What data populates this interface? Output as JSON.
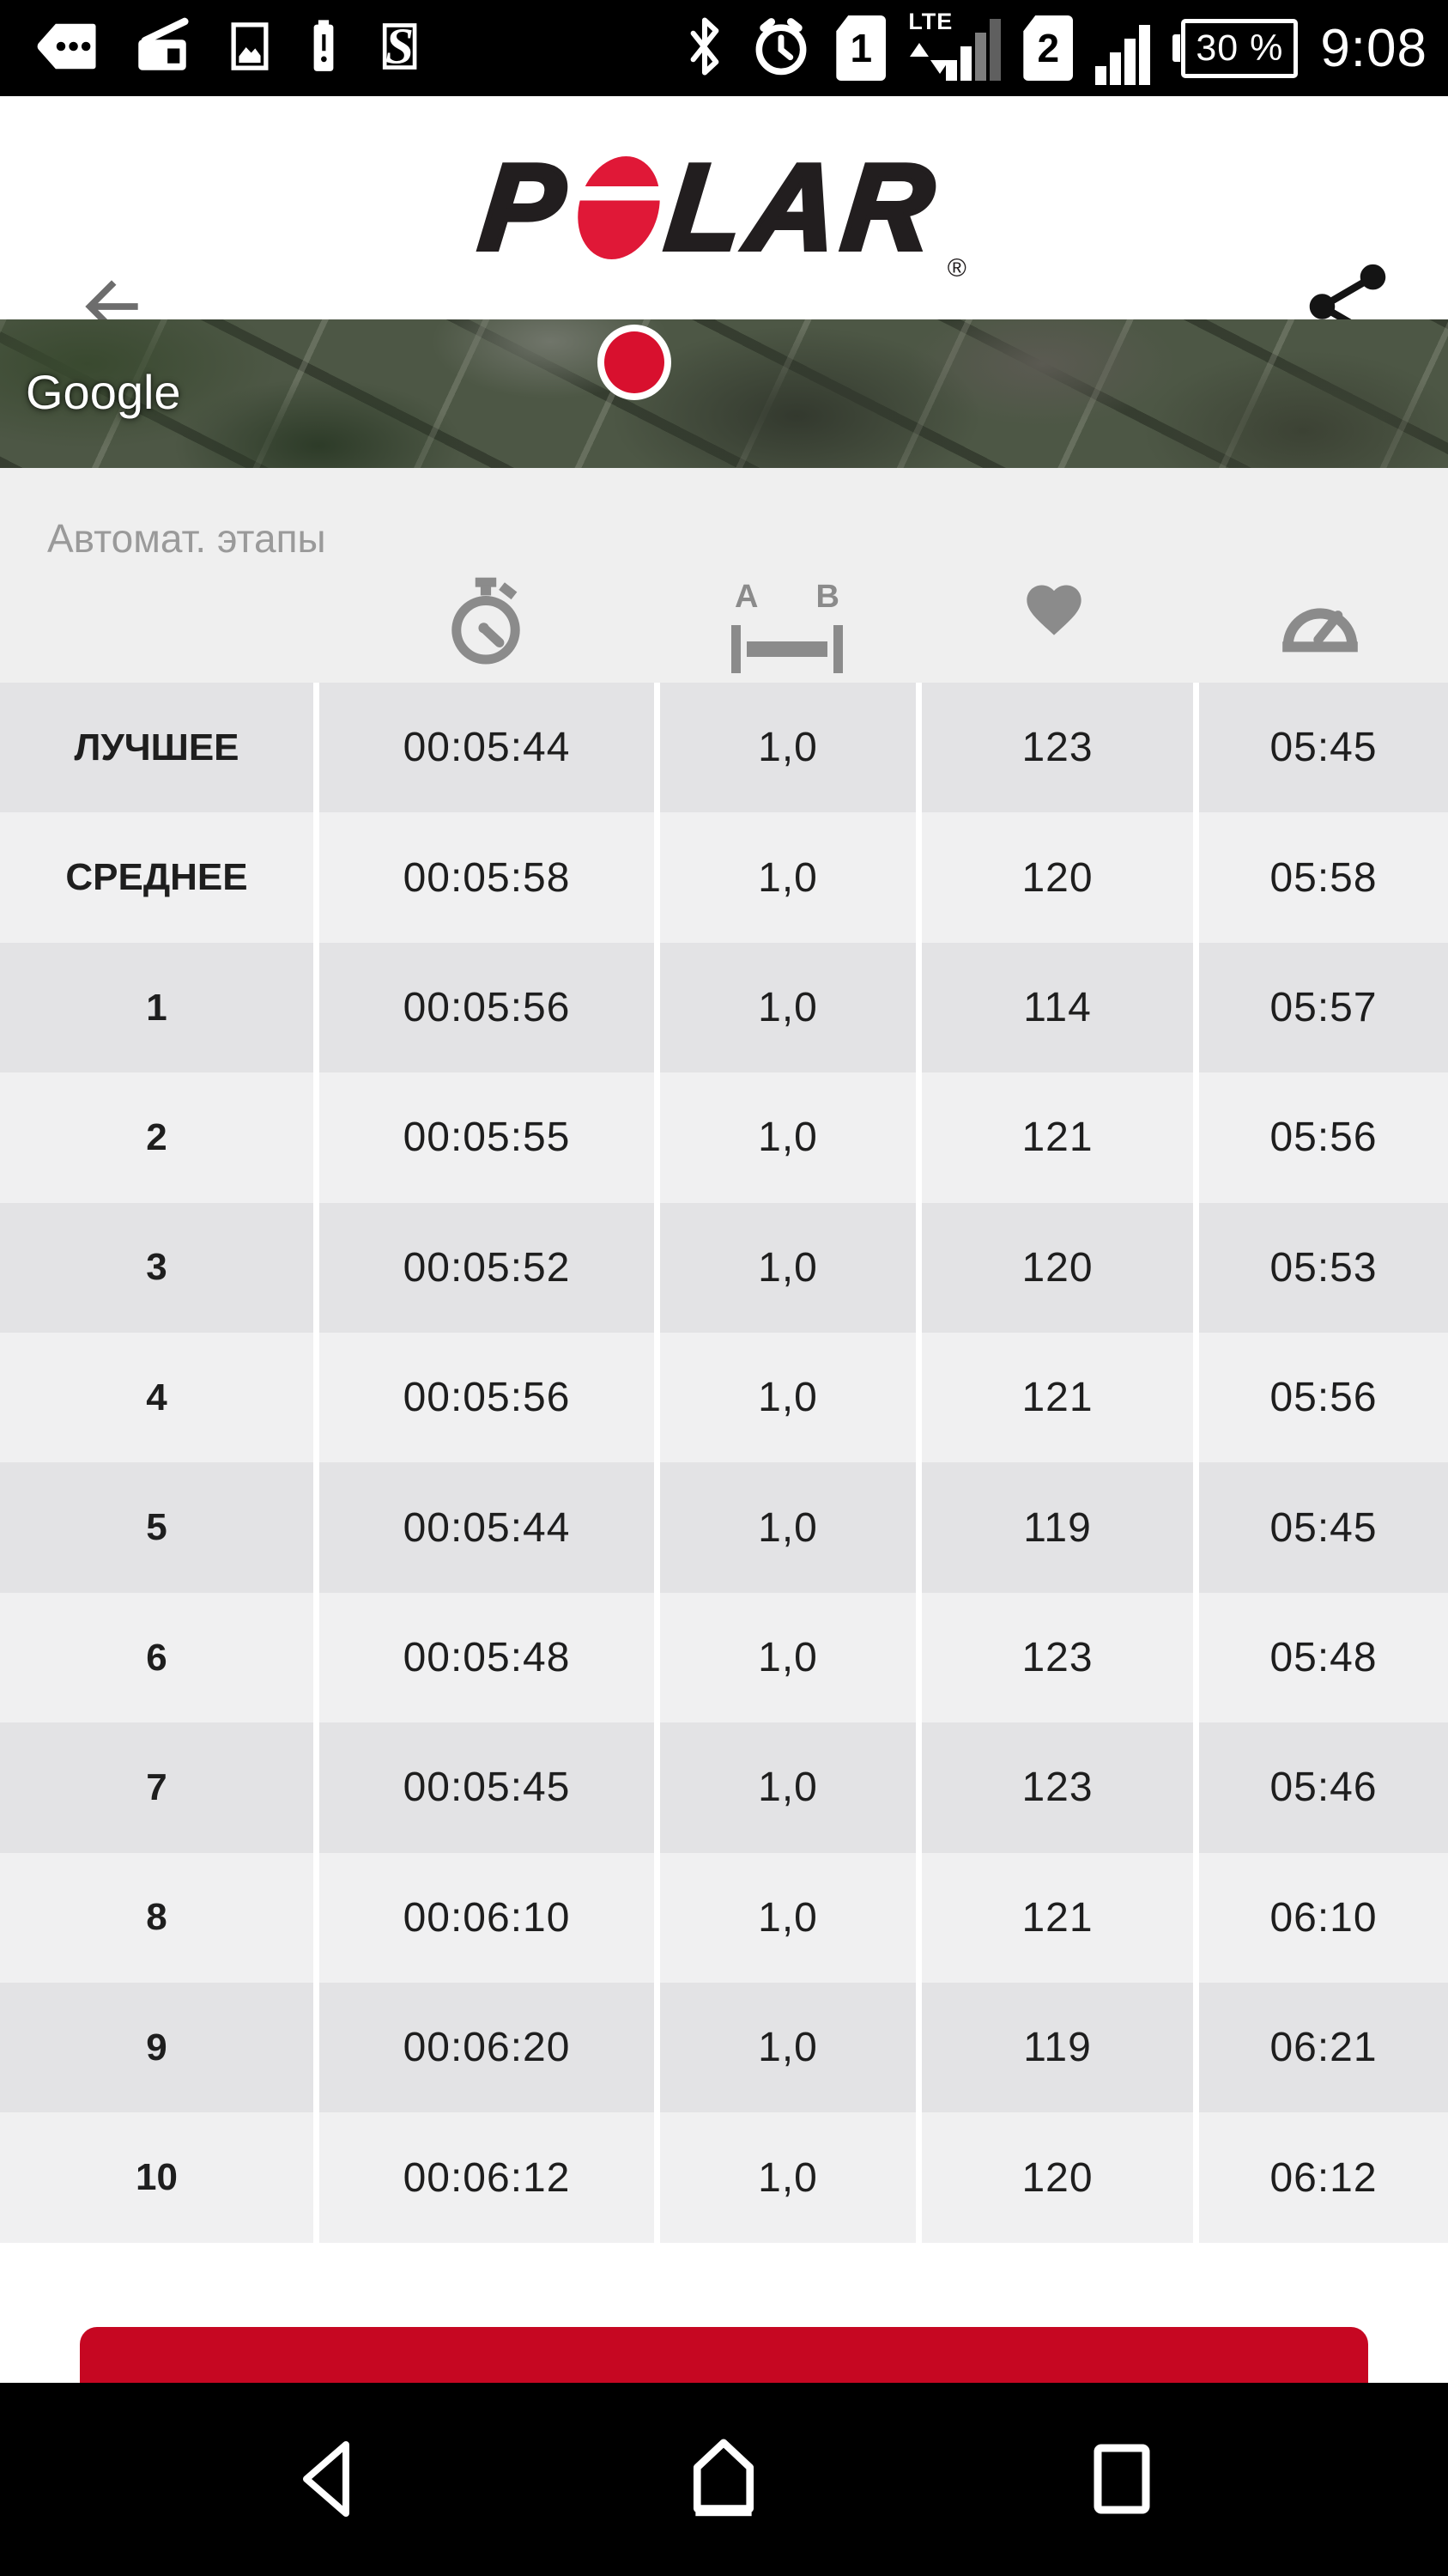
{
  "status_bar": {
    "time": "9:08",
    "battery_percent": "30 %",
    "sim1_label": "1",
    "sim1_network": "LTE",
    "sim2_label": "2",
    "notification_icons": [
      "message-tag-icon",
      "radio-icon",
      "screenshot-icon",
      "battery-alert-icon",
      "app-s-icon"
    ],
    "system_icons": [
      "bluetooth-icon",
      "alarm-icon",
      "sim1-signal-icon",
      "sim2-signal-icon",
      "battery-level-icon"
    ]
  },
  "app_bar": {
    "brand": "POLAR",
    "logo_p": "P",
    "logo_lar": "LAR",
    "registered_mark": "®"
  },
  "map": {
    "watermark": "Google"
  },
  "laps": {
    "title": "Автомат. этапы",
    "ab_letters": {
      "a": "A",
      "b": "B"
    },
    "column_icons": [
      "stopwatch-icon",
      "distance-ab-icon",
      "heart-rate-icon",
      "pace-gauge-icon"
    ],
    "rows": [
      {
        "label": "ЛУЧШЕЕ",
        "duration": "00:05:44",
        "distance": "1,0",
        "heart_rate": "123",
        "pace": "05:45"
      },
      {
        "label": "СРЕДНЕЕ",
        "duration": "00:05:58",
        "distance": "1,0",
        "heart_rate": "120",
        "pace": "05:58"
      },
      {
        "label": "1",
        "duration": "00:05:56",
        "distance": "1,0",
        "heart_rate": "114",
        "pace": "05:57"
      },
      {
        "label": "2",
        "duration": "00:05:55",
        "distance": "1,0",
        "heart_rate": "121",
        "pace": "05:56"
      },
      {
        "label": "3",
        "duration": "00:05:52",
        "distance": "1,0",
        "heart_rate": "120",
        "pace": "05:53"
      },
      {
        "label": "4",
        "duration": "00:05:56",
        "distance": "1,0",
        "heart_rate": "121",
        "pace": "05:56"
      },
      {
        "label": "5",
        "duration": "00:05:44",
        "distance": "1,0",
        "heart_rate": "119",
        "pace": "05:45"
      },
      {
        "label": "6",
        "duration": "00:05:48",
        "distance": "1,0",
        "heart_rate": "123",
        "pace": "05:48"
      },
      {
        "label": "7",
        "duration": "00:05:45",
        "distance": "1,0",
        "heart_rate": "123",
        "pace": "05:46"
      },
      {
        "label": "8",
        "duration": "00:06:10",
        "distance": "1,0",
        "heart_rate": "121",
        "pace": "06:10"
      },
      {
        "label": "9",
        "duration": "00:06:20",
        "distance": "1,0",
        "heart_rate": "119",
        "pace": "06:21"
      },
      {
        "label": "10",
        "duration": "00:06:12",
        "distance": "1,0",
        "heart_rate": "120",
        "pace": "06:12"
      }
    ]
  },
  "colors": {
    "accent_red": "#c60722",
    "marker_red": "#d8102e",
    "logo_red": "#e01837",
    "row_dark": "#e3e3e5",
    "row_light": "#f0f0f1",
    "section_bg": "#efefef"
  },
  "nav_bar": {
    "icons": [
      "back-triangle-icon",
      "home-icon",
      "recents-square-icon"
    ]
  }
}
